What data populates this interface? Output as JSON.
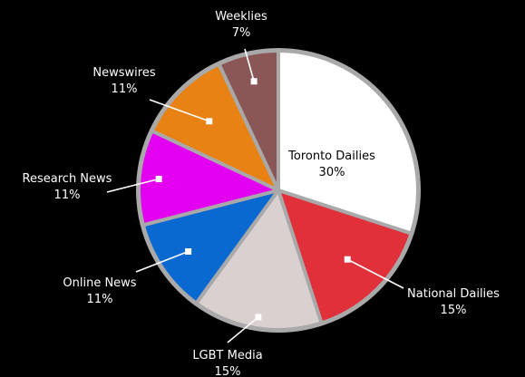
{
  "chart_data": {
    "type": "pie",
    "title": "",
    "slices": [
      {
        "label": "Toronto Dailies",
        "value": 30,
        "value_label": "30%",
        "color": "#ffffff"
      },
      {
        "label": "National Dailies",
        "value": 15,
        "value_label": "15%",
        "color": "#e0303a"
      },
      {
        "label": "LGBT Media",
        "value": 15,
        "value_label": "15%",
        "color": "#d9d0cf"
      },
      {
        "label": "Online News",
        "value": 11,
        "value_label": "11%",
        "color": "#0a68d1"
      },
      {
        "label": "Research News",
        "value": 11,
        "value_label": "11%",
        "color": "#e300f0"
      },
      {
        "label": "Newswires",
        "value": 11,
        "value_label": "11%",
        "color": "#e98214"
      },
      {
        "label": "Weeklies",
        "value": 7,
        "value_label": "7%",
        "color": "#8b5656"
      }
    ],
    "rim_color": "#a9a9a9",
    "background": "#000000"
  }
}
